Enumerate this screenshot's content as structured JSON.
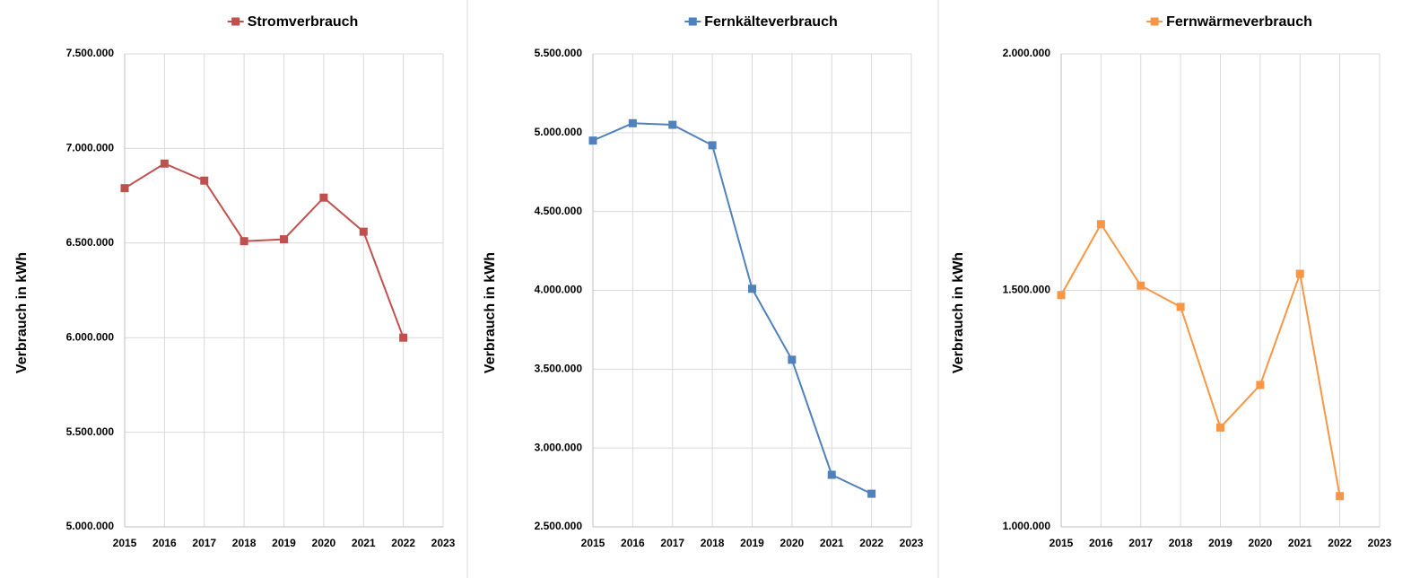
{
  "chart_data": [
    {
      "type": "line",
      "ylabel": "Verbrauch in kWh",
      "x": [
        2015,
        2016,
        2017,
        2018,
        2019,
        2020,
        2021,
        2022
      ],
      "series": [
        {
          "name": "Stromverbrauch",
          "color": "#c0504d",
          "values": [
            6790000,
            6920000,
            6830000,
            6510000,
            6520000,
            6740000,
            6560000,
            6000000
          ]
        }
      ],
      "xlim": [
        2015,
        2023
      ],
      "xticks": [
        2015,
        2016,
        2017,
        2018,
        2019,
        2020,
        2021,
        2022,
        2023
      ],
      "ylim": [
        5000000,
        7500000
      ],
      "yticks": [
        {
          "value": 5000000,
          "label": "5.000.000"
        },
        {
          "value": 5500000,
          "label": "5.500.000"
        },
        {
          "value": 6000000,
          "label": "6.000.000"
        },
        {
          "value": 6500000,
          "label": "6.500.000"
        },
        {
          "value": 7000000,
          "label": "7.000.000"
        },
        {
          "value": 7500000,
          "label": "7.500.000"
        }
      ],
      "grid": true,
      "legend": "top"
    },
    {
      "type": "line",
      "ylabel": "Verbrauch in kWh",
      "x": [
        2015,
        2016,
        2017,
        2018,
        2019,
        2020,
        2021,
        2022
      ],
      "series": [
        {
          "name": "Fernkälteverbrauch",
          "color": "#4f81bd",
          "values": [
            4950000,
            5060000,
            5050000,
            4920000,
            4010000,
            3560000,
            2830000,
            2710000
          ]
        }
      ],
      "xlim": [
        2015,
        2023
      ],
      "xticks": [
        2015,
        2016,
        2017,
        2018,
        2019,
        2020,
        2021,
        2022,
        2023
      ],
      "ylim": [
        2500000,
        5500000
      ],
      "yticks": [
        {
          "value": 2500000,
          "label": "2.500.000"
        },
        {
          "value": 3000000,
          "label": "3.000.000"
        },
        {
          "value": 3500000,
          "label": "3.500.000"
        },
        {
          "value": 4000000,
          "label": "4.000.000"
        },
        {
          "value": 4500000,
          "label": "4.500.000"
        },
        {
          "value": 5000000,
          "label": "5.000.000"
        },
        {
          "value": 5500000,
          "label": "5.500.000"
        }
      ],
      "grid": true,
      "legend": "top"
    },
    {
      "type": "line",
      "ylabel": "Verbrauch in kWh",
      "x": [
        2015,
        2016,
        2017,
        2018,
        2019,
        2020,
        2021,
        2022
      ],
      "series": [
        {
          "name": "Fernwärmeverbrauch",
          "color": "#f79646",
          "values": [
            1490000,
            1640000,
            1510000,
            1465000,
            1210000,
            1300000,
            1535000,
            1065000
          ]
        }
      ],
      "xlim": [
        2015,
        2023
      ],
      "xticks": [
        2015,
        2016,
        2017,
        2018,
        2019,
        2020,
        2021,
        2022,
        2023
      ],
      "ylim": [
        1000000,
        2000000
      ],
      "yticks": [
        {
          "value": 1000000,
          "label": "1.000.000"
        },
        {
          "value": 1500000,
          "label": "1.500.000"
        },
        {
          "value": 2000000,
          "label": "2.000.000"
        }
      ],
      "grid": true,
      "legend": "top"
    }
  ]
}
